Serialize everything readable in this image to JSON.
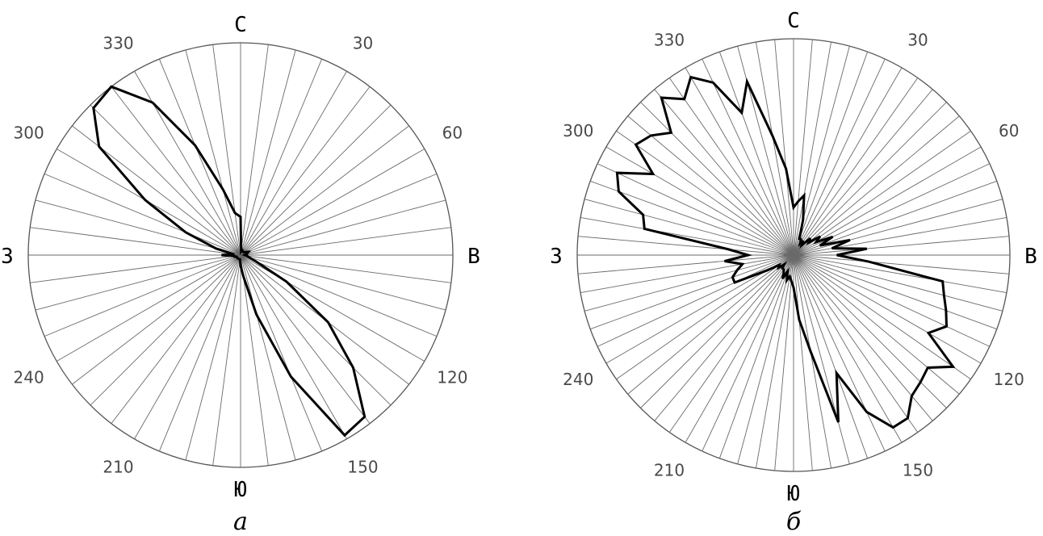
{
  "chart_data": [
    {
      "type": "polar-line",
      "caption": "а",
      "sector_step_deg": 7.5,
      "cardinals": {
        "n": "С",
        "e": "В",
        "s": "Ю",
        "w": "З"
      },
      "tick_labels": [
        {
          "deg": 30,
          "text": "30"
        },
        {
          "deg": 60,
          "text": "60"
        },
        {
          "deg": 120,
          "text": "120"
        },
        {
          "deg": 150,
          "text": "150"
        },
        {
          "deg": 210,
          "text": "210"
        },
        {
          "deg": 240,
          "text": "240"
        },
        {
          "deg": 300,
          "text": "300"
        },
        {
          "deg": 330,
          "text": "330"
        }
      ],
      "rmax": 1.0,
      "series": [
        {
          "points": [
            [
              0,
              0.18
            ],
            [
              7.5,
              0.02
            ],
            [
              15,
              0.03
            ],
            [
              22.5,
              0.02
            ],
            [
              30,
              0.02
            ],
            [
              37.5,
              0.02
            ],
            [
              45,
              0.02
            ],
            [
              52.5,
              0.02
            ],
            [
              60,
              0.03
            ],
            [
              67.5,
              0.04
            ],
            [
              75,
              0.03
            ],
            [
              82.5,
              0.03
            ],
            [
              90,
              0.02
            ],
            [
              97.5,
              0.03
            ],
            [
              105,
              0.04
            ],
            [
              112.5,
              0.08
            ],
            [
              120,
              0.25
            ],
            [
              127.5,
              0.52
            ],
            [
              135,
              0.75
            ],
            [
              142.5,
              0.96
            ],
            [
              150,
              0.98
            ],
            [
              157.5,
              0.62
            ],
            [
              165,
              0.29
            ],
            [
              172.5,
              0.1
            ],
            [
              180,
              0.05
            ],
            [
              187.5,
              0.02
            ],
            [
              195,
              0.02
            ],
            [
              202.5,
              0.02
            ],
            [
              210,
              0.02
            ],
            [
              217.5,
              0.02
            ],
            [
              225,
              0.02
            ],
            [
              232.5,
              0.02
            ],
            [
              240,
              0.02
            ],
            [
              247.5,
              0.02
            ],
            [
              255,
              0.03
            ],
            [
              262.5,
              0.03
            ],
            [
              270,
              0.09
            ],
            [
              277.5,
              0.03
            ],
            [
              285,
              0.12
            ],
            [
              292.5,
              0.28
            ],
            [
              300,
              0.52
            ],
            [
              307.5,
              0.84
            ],
            [
              315,
              0.98
            ],
            [
              322.5,
              1.0
            ],
            [
              330,
              0.83
            ],
            [
              337.5,
              0.56
            ],
            [
              345,
              0.32
            ],
            [
              352.5,
              0.2
            ]
          ]
        }
      ]
    },
    {
      "type": "polar-line",
      "caption": "б",
      "sector_step_deg": 5,
      "cardinals": {
        "n": "С",
        "e": "В",
        "s": "Ю",
        "w": "З"
      },
      "tick_labels": [
        {
          "deg": 30,
          "text": "30"
        },
        {
          "deg": 60,
          "text": "60"
        },
        {
          "deg": 120,
          "text": "120"
        },
        {
          "deg": 150,
          "text": "150"
        },
        {
          "deg": 210,
          "text": "210"
        },
        {
          "deg": 240,
          "text": "240"
        },
        {
          "deg": 300,
          "text": "300"
        },
        {
          "deg": 330,
          "text": "330"
        }
      ],
      "rmax": 1.0,
      "series": [
        {
          "points": [
            [
              0,
              0.22
            ],
            [
              5,
              0.25
            ],
            [
              10,
              0.28
            ],
            [
              15,
              0.17
            ],
            [
              20,
              0.08
            ],
            [
              25,
              0.08
            ],
            [
              30,
              0.06
            ],
            [
              35,
              0.08
            ],
            [
              40,
              0.06
            ],
            [
              45,
              0.11
            ],
            [
              50,
              0.09
            ],
            [
              55,
              0.15
            ],
            [
              60,
              0.12
            ],
            [
              65,
              0.2
            ],
            [
              70,
              0.13
            ],
            [
              75,
              0.27
            ],
            [
              80,
              0.18
            ],
            [
              85,
              0.34
            ],
            [
              90,
              0.2
            ],
            [
              95,
              0.35
            ],
            [
              100,
              0.7
            ],
            [
              105,
              0.72
            ],
            [
              110,
              0.75
            ],
            [
              115,
              0.78
            ],
            [
              120,
              0.72
            ],
            [
              125,
              0.9
            ],
            [
              130,
              0.81
            ],
            [
              135,
              0.83
            ],
            [
              140,
              0.85
            ],
            [
              145,
              0.92
            ],
            [
              150,
              0.92
            ],
            [
              155,
              0.8
            ],
            [
              160,
              0.58
            ],
            [
              165,
              0.8
            ],
            [
              170,
              0.45
            ],
            [
              175,
              0.3
            ],
            [
              180,
              0.15
            ],
            [
              185,
              0.12
            ],
            [
              190,
              0.1
            ],
            [
              195,
              0.12
            ],
            [
              200,
              0.08
            ],
            [
              205,
              0.12
            ],
            [
              210,
              0.09
            ],
            [
              215,
              0.08
            ],
            [
              220,
              0.08
            ],
            [
              225,
              0.06
            ],
            [
              230,
              0.09
            ],
            [
              235,
              0.08
            ],
            [
              240,
              0.14
            ],
            [
              245,
              0.3
            ],
            [
              250,
              0.3
            ],
            [
              255,
              0.27
            ],
            [
              260,
              0.24
            ],
            [
              265,
              0.32
            ],
            [
              270,
              0.21
            ],
            [
              275,
              0.3
            ],
            [
              280,
              0.7
            ],
            [
              285,
              0.72
            ],
            [
              290,
              0.86
            ],
            [
              295,
              0.9
            ],
            [
              300,
              0.75
            ],
            [
              305,
              0.89
            ],
            [
              310,
              0.86
            ],
            [
              315,
              0.8
            ],
            [
              320,
              0.95
            ],
            [
              325,
              0.88
            ],
            [
              330,
              0.95
            ],
            [
              335,
              0.88
            ],
            [
              340,
              0.7
            ],
            [
              345,
              0.83
            ],
            [
              350,
              0.56
            ],
            [
              355,
              0.4
            ]
          ]
        }
      ]
    }
  ]
}
